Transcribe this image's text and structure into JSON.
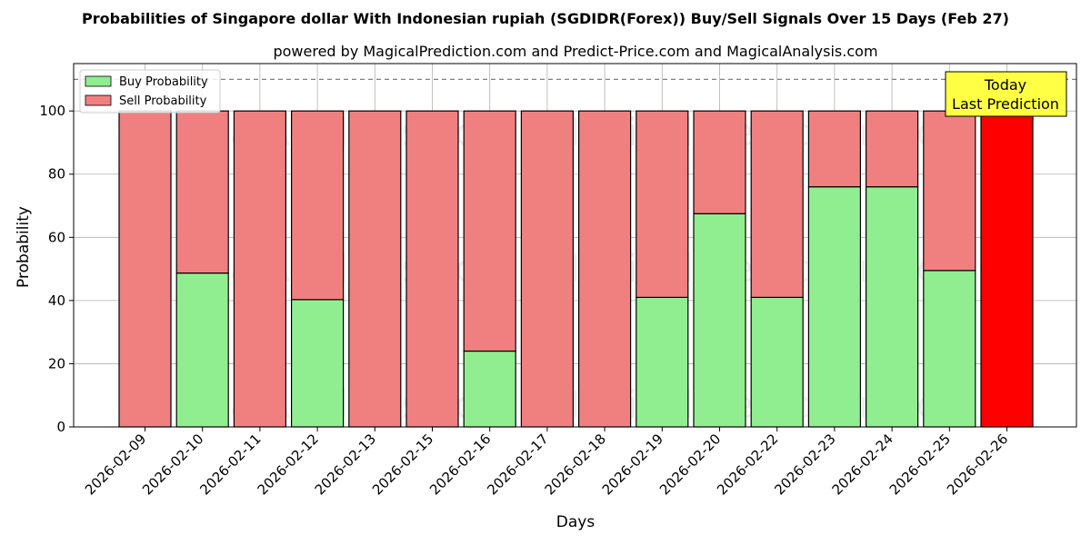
{
  "chart_data": {
    "type": "bar",
    "stacked": true,
    "title": "Probabilities of Singapore dollar With Indonesian rupiah (SGDIDR(Forex)) Buy/Sell Signals Over 15 Days (Feb 27)",
    "subtitle": "powered by MagicalPrediction.com and Predict-Price.com and MagicalAnalysis.com",
    "xlabel": "Days",
    "ylabel": "Probability",
    "ylim": [
      0,
      115
    ],
    "yticks": [
      "0",
      "20",
      "40",
      "60",
      "80",
      "100"
    ],
    "reference_line": 110,
    "grid": true,
    "legend_position": "top-left",
    "categories": [
      "2026-02-09",
      "2026-02-10",
      "2026-02-11",
      "2026-02-12",
      "2026-02-13",
      "2026-02-15",
      "2026-02-16",
      "2026-02-17",
      "2026-02-18",
      "2026-02-19",
      "2026-02-20",
      "2026-02-22",
      "2026-02-23",
      "2026-02-24",
      "2026-02-25",
      "2026-02-26"
    ],
    "series": [
      {
        "name": "Buy Probability",
        "color": "#90ee90",
        "values": [
          0,
          48.7,
          0,
          40.3,
          0,
          0,
          24,
          0,
          0,
          41,
          67.5,
          41,
          76,
          76,
          49.5,
          0
        ]
      },
      {
        "name": "Sell Probability",
        "color": "#f08080",
        "values": [
          100,
          51.3,
          100,
          59.7,
          100,
          100,
          76,
          100,
          100,
          59,
          32.5,
          59,
          24,
          24,
          50.5,
          100
        ]
      }
    ],
    "highlight": {
      "index": 15,
      "color": "#ff0000",
      "label_line1": "Today",
      "label_line2": "Last Prediction",
      "label_bg": "#ffff44"
    },
    "watermarks": [
      "MagicalAnalysis.com",
      "MagicalPrediction.com"
    ]
  }
}
